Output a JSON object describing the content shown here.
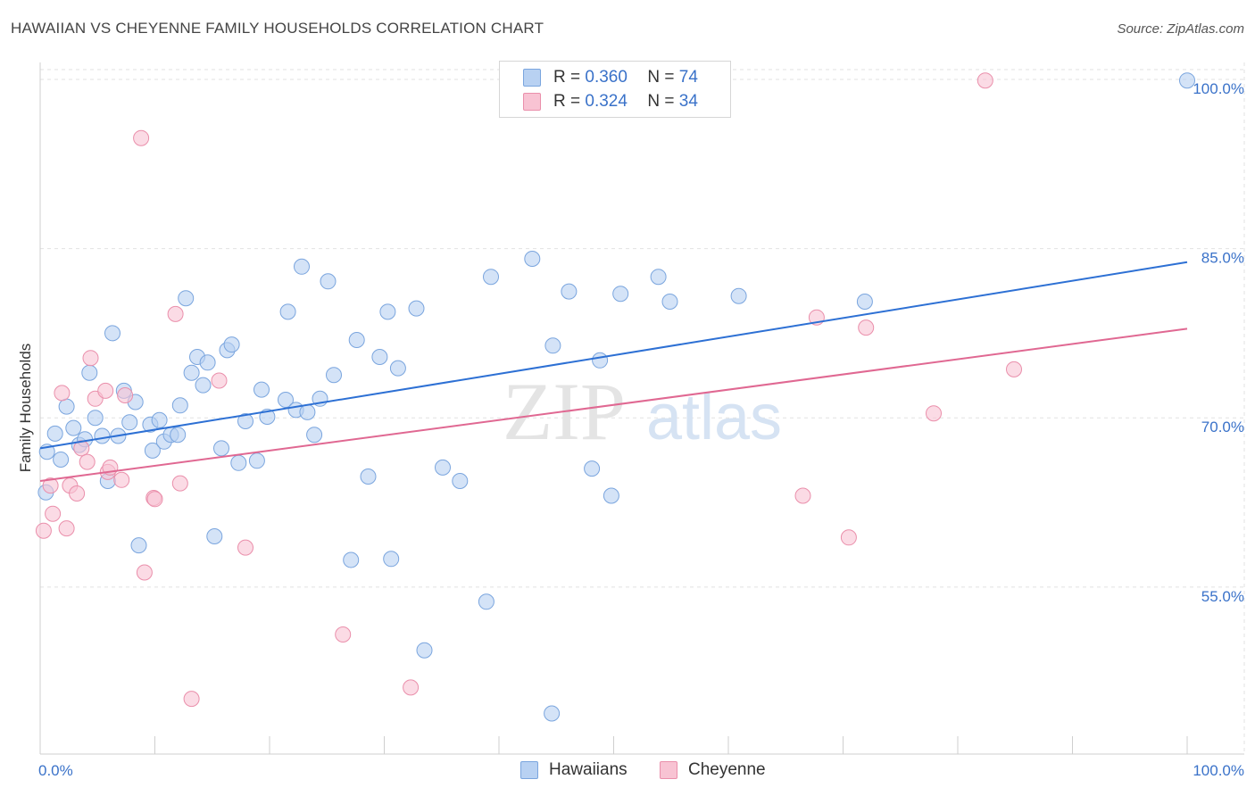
{
  "title": "HAWAIIAN VS CHEYENNE FAMILY HOUSEHOLDS CORRELATION CHART",
  "source": "Source: ZipAtlas.com",
  "watermark": {
    "zip": "ZIP",
    "atlas": "atlas"
  },
  "colors": {
    "blue_fill": "#b8d1f2",
    "blue_stroke": "#7aa5de",
    "blue_line": "#2d70d4",
    "pink_fill": "#f8c3d3",
    "pink_stroke": "#ea8fab",
    "pink_line": "#e06892",
    "axis_label": "#3a72c9",
    "grid": "#e2e2e2"
  },
  "legend": {
    "rows": [
      {
        "r_label": "R =",
        "r_value": "0.360",
        "n_label": "N =",
        "n_value": "74"
      },
      {
        "r_label": "R =",
        "r_value": "0.324",
        "n_label": "N =",
        "n_value": "34"
      }
    ],
    "bottom": [
      "Hawaiians",
      "Cheyenne"
    ]
  },
  "chart_data": {
    "type": "scatter",
    "title": "HAWAIIAN VS CHEYENNE FAMILY HOUSEHOLDS CORRELATION CHART",
    "xlabel": "",
    "ylabel": "Family Households",
    "xlim": [
      0,
      100
    ],
    "ylim": [
      40.2,
      101.5
    ],
    "x_tick_labels": [
      "0.0%",
      "100.0%"
    ],
    "y_ticks": [
      55,
      70,
      85,
      100
    ],
    "y_tick_labels": [
      "55.0%",
      "70.0%",
      "85.0%",
      "100.0%"
    ],
    "series": [
      {
        "name": "Hawaiians",
        "r": 0.36,
        "n": 74,
        "trend": {
          "x": [
            0,
            100
          ],
          "y": [
            67.3,
            83.8
          ]
        },
        "points": [
          [
            0.6,
            67.0
          ],
          [
            1.3,
            68.6
          ],
          [
            1.8,
            66.3
          ],
          [
            2.3,
            71.0
          ],
          [
            2.9,
            69.1
          ],
          [
            3.4,
            67.6
          ],
          [
            3.9,
            68.1
          ],
          [
            4.3,
            74.0
          ],
          [
            4.8,
            70.0
          ],
          [
            5.4,
            68.4
          ],
          [
            5.9,
            64.4
          ],
          [
            6.3,
            77.5
          ],
          [
            6.8,
            68.4
          ],
          [
            7.3,
            72.4
          ],
          [
            7.8,
            69.6
          ],
          [
            8.3,
            71.4
          ],
          [
            8.6,
            58.7
          ],
          [
            9.6,
            69.4
          ],
          [
            9.8,
            67.1
          ],
          [
            10.4,
            69.8
          ],
          [
            10.8,
            67.9
          ],
          [
            11.4,
            68.5
          ],
          [
            12.0,
            68.5
          ],
          [
            12.2,
            71.1
          ],
          [
            12.7,
            80.6
          ],
          [
            13.2,
            74.0
          ],
          [
            13.7,
            75.4
          ],
          [
            14.2,
            72.9
          ],
          [
            14.6,
            74.9
          ],
          [
            15.2,
            59.5
          ],
          [
            15.8,
            67.3
          ],
          [
            16.3,
            76.0
          ],
          [
            16.7,
            76.5
          ],
          [
            17.3,
            66.0
          ],
          [
            17.9,
            69.7
          ],
          [
            18.9,
            66.2
          ],
          [
            19.3,
            72.5
          ],
          [
            19.8,
            70.1
          ],
          [
            21.4,
            71.6
          ],
          [
            21.6,
            79.4
          ],
          [
            22.3,
            70.7
          ],
          [
            22.8,
            83.4
          ],
          [
            23.3,
            70.5
          ],
          [
            23.9,
            68.5
          ],
          [
            24.4,
            71.7
          ],
          [
            25.1,
            82.1
          ],
          [
            25.6,
            73.8
          ],
          [
            27.1,
            57.4
          ],
          [
            27.6,
            76.9
          ],
          [
            28.6,
            64.8
          ],
          [
            29.6,
            75.4
          ],
          [
            30.3,
            79.4
          ],
          [
            30.6,
            57.5
          ],
          [
            31.2,
            74.4
          ],
          [
            32.8,
            79.7
          ],
          [
            33.5,
            49.4
          ],
          [
            35.1,
            65.6
          ],
          [
            36.6,
            64.4
          ],
          [
            38.9,
            53.7
          ],
          [
            39.3,
            82.5
          ],
          [
            42.9,
            84.1
          ],
          [
            44.6,
            43.8
          ],
          [
            44.7,
            76.4
          ],
          [
            46.1,
            81.2
          ],
          [
            48.1,
            65.5
          ],
          [
            48.8,
            75.1
          ],
          [
            49.8,
            63.1
          ],
          [
            50.6,
            81.0
          ],
          [
            53.9,
            82.5
          ],
          [
            54.9,
            80.3
          ],
          [
            60.9,
            80.8
          ],
          [
            71.9,
            80.3
          ],
          [
            0.5,
            63.4
          ],
          [
            100.0,
            99.9
          ]
        ]
      },
      {
        "name": "Cheyenne",
        "r": 0.324,
        "n": 34,
        "trend": {
          "x": [
            0,
            100
          ],
          "y": [
            64.4,
            77.9
          ]
        },
        "points": [
          [
            0.3,
            60.0
          ],
          [
            0.9,
            64.0
          ],
          [
            1.1,
            61.5
          ],
          [
            1.9,
            72.2
          ],
          [
            2.3,
            60.2
          ],
          [
            2.6,
            64.0
          ],
          [
            3.2,
            63.3
          ],
          [
            3.6,
            67.3
          ],
          [
            4.1,
            66.1
          ],
          [
            4.4,
            75.3
          ],
          [
            4.8,
            71.7
          ],
          [
            5.7,
            72.4
          ],
          [
            5.9,
            65.2
          ],
          [
            6.1,
            65.6
          ],
          [
            7.1,
            64.5
          ],
          [
            7.4,
            72.0
          ],
          [
            8.8,
            94.8
          ],
          [
            9.1,
            56.3
          ],
          [
            9.9,
            62.9
          ],
          [
            10.0,
            62.8
          ],
          [
            11.8,
            79.2
          ],
          [
            12.2,
            64.2
          ],
          [
            13.2,
            45.1
          ],
          [
            15.6,
            73.3
          ],
          [
            17.9,
            58.5
          ],
          [
            26.4,
            50.8
          ],
          [
            32.3,
            46.1
          ],
          [
            66.5,
            63.1
          ],
          [
            67.7,
            78.9
          ],
          [
            70.5,
            59.4
          ],
          [
            72.0,
            78.0
          ],
          [
            77.9,
            70.4
          ],
          [
            84.9,
            74.3
          ],
          [
            82.4,
            99.9
          ]
        ]
      }
    ]
  }
}
